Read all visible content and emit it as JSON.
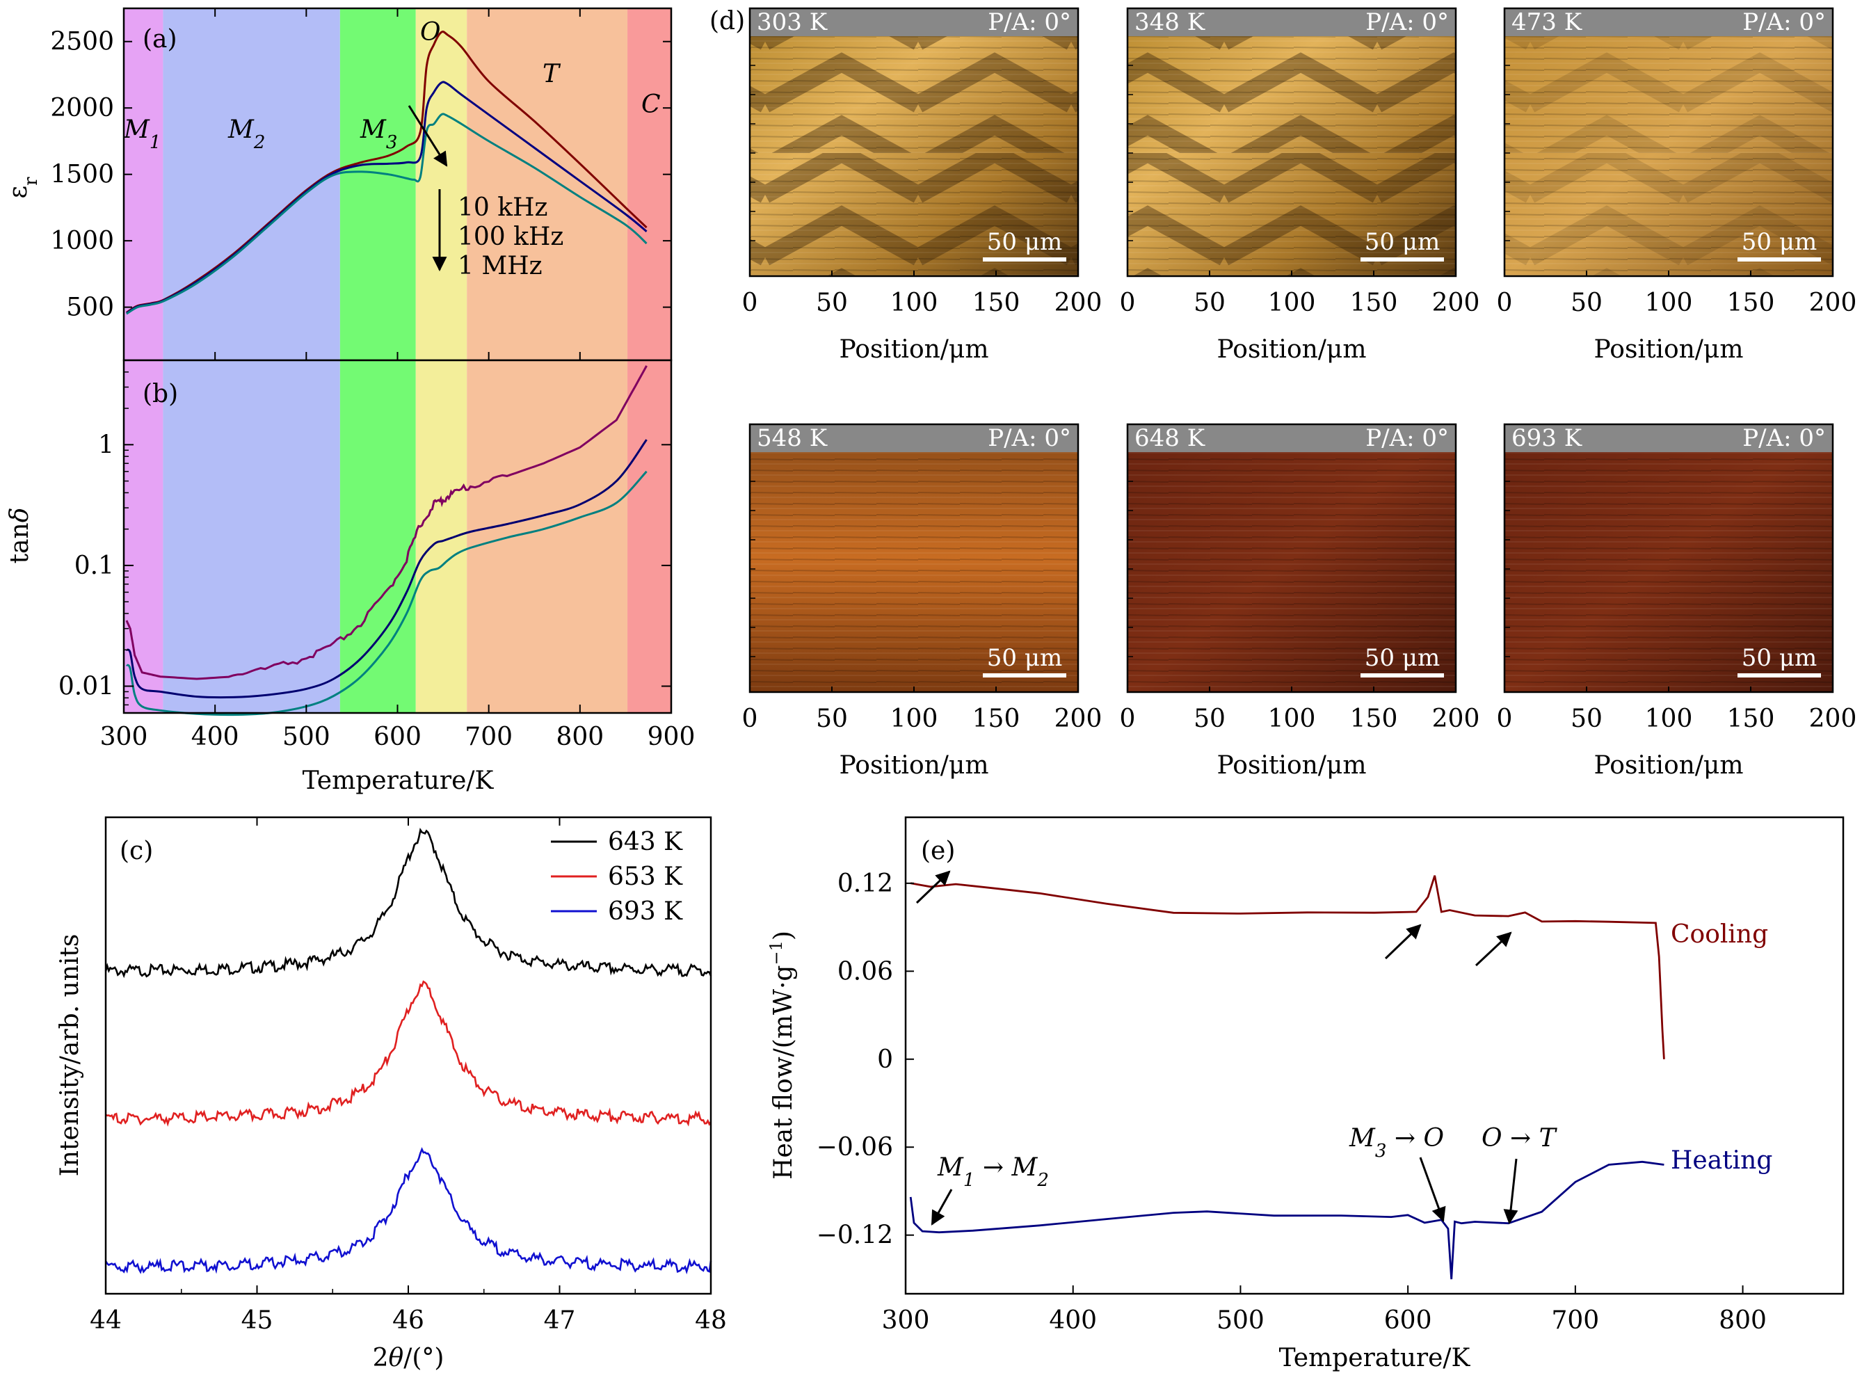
{
  "chart_data": [
    {
      "id": "a",
      "type": "line",
      "panel_label": "(a)",
      "ylabel": "εr",
      "xlim": [
        300,
        900
      ],
      "ylim": [
        100,
        2750
      ],
      "yticks": [
        500,
        1000,
        1500,
        2000,
        2500
      ],
      "phase_regions": [
        {
          "name": "M1",
          "sub": "1",
          "x0": 300,
          "x1": 343,
          "color": "#e6a3f5"
        },
        {
          "name": "M2",
          "sub": "2",
          "x0": 343,
          "x1": 537,
          "color": "#b3bdf7"
        },
        {
          "name": "M3",
          "sub": "3",
          "x0": 537,
          "x1": 620,
          "color": "#73fa73"
        },
        {
          "name": "O",
          "sub": "",
          "x0": 620,
          "x1": 676,
          "color": "#f3ee9a"
        },
        {
          "name": "T",
          "sub": "",
          "x0": 676,
          "x1": 852,
          "color": "#f7c19b"
        },
        {
          "name": "C",
          "sub": "",
          "x0": 852,
          "x1": 900,
          "color": "#f99a9a"
        }
      ],
      "legend_lines": [
        "10 kHz",
        "100 kHz",
        "1 MHz"
      ],
      "series": [
        {
          "name": "10 kHz",
          "color": "#800000",
          "x": [
            303,
            315,
            330,
            345,
            380,
            420,
            460,
            500,
            530,
            560,
            590,
            610,
            625,
            632,
            640,
            648,
            655,
            670,
            700,
            750,
            800,
            850,
            873
          ],
          "y": [
            460,
            510,
            530,
            560,
            700,
            900,
            1140,
            1380,
            1520,
            1590,
            1640,
            1710,
            1820,
            2320,
            2480,
            2570,
            2550,
            2460,
            2200,
            1900,
            1580,
            1250,
            1100
          ]
        },
        {
          "name": "100 kHz",
          "color": "#000080",
          "x": [
            303,
            315,
            330,
            345,
            380,
            420,
            460,
            500,
            530,
            560,
            590,
            610,
            625,
            632,
            640,
            648,
            655,
            670,
            700,
            750,
            800,
            850,
            873
          ],
          "y": [
            455,
            505,
            525,
            555,
            690,
            890,
            1130,
            1370,
            1510,
            1570,
            1580,
            1590,
            1630,
            2000,
            2120,
            2190,
            2180,
            2100,
            1950,
            1700,
            1450,
            1200,
            1070
          ]
        },
        {
          "name": "1 MHz",
          "color": "#008080",
          "x": [
            303,
            315,
            330,
            345,
            380,
            420,
            460,
            500,
            530,
            560,
            590,
            610,
            618,
            625,
            632,
            640,
            648,
            655,
            670,
            700,
            750,
            800,
            850,
            873
          ],
          "y": [
            450,
            500,
            520,
            550,
            680,
            880,
            1120,
            1360,
            1495,
            1520,
            1500,
            1470,
            1460,
            1480,
            1830,
            1880,
            1950,
            1940,
            1880,
            1750,
            1550,
            1330,
            1120,
            980
          ]
        }
      ]
    },
    {
      "id": "b",
      "type": "line",
      "panel_label": "(b)",
      "xlabel": "Temperature/K",
      "ylabel": "tanδ",
      "xlim": [
        300,
        900
      ],
      "ylog": [
        0.006,
        5
      ],
      "yticks": [
        0.01,
        0.1,
        1
      ],
      "ytick_labels": [
        "0.01",
        "0.1",
        "1"
      ],
      "xticks": [
        300,
        400,
        500,
        600,
        700,
        800,
        900
      ],
      "series": [
        {
          "name": "10 kHz",
          "color": "#800060",
          "x": [
            303,
            307,
            312,
            320,
            340,
            380,
            420,
            460,
            500,
            530,
            560,
            590,
            610,
            625,
            640,
            650,
            660,
            680,
            720,
            760,
            800,
            840,
            873
          ],
          "y": [
            0.035,
            0.03,
            0.018,
            0.013,
            0.012,
            0.0115,
            0.012,
            0.0135,
            0.0165,
            0.021,
            0.032,
            0.06,
            0.11,
            0.21,
            0.31,
            0.34,
            0.38,
            0.44,
            0.55,
            0.7,
            0.95,
            1.6,
            4.5
          ]
        },
        {
          "name": "100 kHz",
          "color": "#000070",
          "x": [
            303,
            307,
            312,
            320,
            340,
            380,
            420,
            460,
            500,
            530,
            560,
            590,
            610,
            625,
            640,
            650,
            660,
            680,
            720,
            760,
            800,
            840,
            873
          ],
          "y": [
            0.02,
            0.019,
            0.012,
            0.0095,
            0.009,
            0.0082,
            0.0081,
            0.0085,
            0.0095,
            0.0115,
            0.017,
            0.032,
            0.06,
            0.11,
            0.15,
            0.16,
            0.17,
            0.19,
            0.22,
            0.26,
            0.32,
            0.5,
            1.1
          ]
        },
        {
          "name": "1 MHz",
          "color": "#008080",
          "x": [
            303,
            307,
            312,
            320,
            340,
            380,
            420,
            460,
            500,
            530,
            560,
            590,
            610,
            625,
            635,
            645,
            655,
            665,
            680,
            720,
            760,
            800,
            840,
            873
          ],
          "y": [
            0.015,
            0.014,
            0.0085,
            0.0068,
            0.0063,
            0.0059,
            0.0058,
            0.006,
            0.0068,
            0.0083,
            0.012,
            0.022,
            0.04,
            0.075,
            0.09,
            0.095,
            0.11,
            0.125,
            0.14,
            0.17,
            0.2,
            0.25,
            0.33,
            0.6
          ]
        }
      ]
    },
    {
      "id": "c",
      "type": "line",
      "panel_label": "(c)",
      "xlabel": "2θ/(°)",
      "ylabel": "Intensity/arb. units",
      "xlim": [
        44,
        48
      ],
      "xticks": [
        44,
        45,
        46,
        47,
        48
      ],
      "series": [
        {
          "name": "643 K",
          "color": "#000000",
          "center": 46.1,
          "width": 0.22,
          "base": 0.68,
          "amp": 0.29
        },
        {
          "name": "653 K",
          "color": "#e02020",
          "center": 46.1,
          "width": 0.22,
          "base": 0.37,
          "amp": 0.28
        },
        {
          "name": "693 K",
          "color": "#1010d0",
          "center": 46.1,
          "width": 0.22,
          "base": 0.06,
          "amp": 0.24
        }
      ]
    },
    {
      "id": "e",
      "type": "line",
      "panel_label": "(e)",
      "xlabel": "Temperature/K",
      "ylabel": "Heat flow/(mW·g⁻¹)",
      "xlim": [
        300,
        860
      ],
      "ylim": [
        -0.16,
        0.165
      ],
      "xticks": [
        300,
        400,
        500,
        600,
        700,
        800
      ],
      "yticks": [
        0.12,
        0.06,
        0,
        -0.06,
        -0.12
      ],
      "ytick_labels": [
        "0.12",
        "0.06",
        "0",
        "−0.06",
        "−0.12"
      ],
      "series": [
        {
          "name": "Cooling",
          "color": "#800000",
          "x": [
            303,
            315,
            330,
            350,
            380,
            420,
            460,
            500,
            540,
            580,
            605,
            612,
            616,
            620,
            625,
            640,
            660,
            670,
            680,
            700,
            720,
            748,
            750,
            752,
            753
          ],
          "y": [
            0.12,
            0.118,
            0.119,
            0.117,
            0.113,
            0.106,
            0.1,
            0.099,
            0.099,
            0.099,
            0.1,
            0.11,
            0.124,
            0.1,
            0.101,
            0.098,
            0.098,
            0.1,
            0.094,
            0.094,
            0.094,
            0.093,
            0.07,
            0.02,
            0
          ]
        },
        {
          "name": "Heating",
          "color": "#000080",
          "x": [
            303,
            305,
            310,
            320,
            340,
            380,
            420,
            460,
            480,
            520,
            560,
            590,
            600,
            610,
            620,
            624,
            626,
            628,
            632,
            640,
            660,
            680,
            700,
            720,
            740,
            753
          ],
          "y": [
            -0.094,
            -0.112,
            -0.118,
            -0.119,
            -0.118,
            -0.114,
            -0.11,
            -0.106,
            -0.105,
            -0.108,
            -0.107,
            -0.108,
            -0.106,
            -0.112,
            -0.11,
            -0.116,
            -0.15,
            -0.112,
            -0.113,
            -0.112,
            -0.113,
            -0.105,
            -0.085,
            -0.072,
            -0.07,
            -0.072
          ]
        }
      ]
    }
  ],
  "panel_a_annotations": {
    "O": "O",
    "T": "T",
    "C": "C",
    "M": "M"
  },
  "panel_e_annotations": {
    "cooling": "Cooling",
    "heating": "Heating",
    "m1m2_main": "M",
    "m1m2_sub1": "1",
    "m1m2_arrow": " → M",
    "m1m2_sub2": "2",
    "m3o_main": "M",
    "m3o_sub": "3",
    "m3o_rest": " → O",
    "ot": "O → T"
  },
  "micrographs": {
    "panel_label": "(d)",
    "xlabel": "Position/μm",
    "xticks": [
      "0",
      "50",
      "100",
      "150",
      "200"
    ],
    "scale_bar": "50 μm",
    "polarizer": "P/A: 0°",
    "images": [
      {
        "temp": "303 K",
        "tone": "golden-domains"
      },
      {
        "temp": "348 K",
        "tone": "golden-domains"
      },
      {
        "temp": "473 K",
        "tone": "golden-faded"
      },
      {
        "temp": "548 K",
        "tone": "orange"
      },
      {
        "temp": "648 K",
        "tone": "dark-red"
      },
      {
        "temp": "693 K",
        "tone": "dark-red"
      }
    ]
  }
}
